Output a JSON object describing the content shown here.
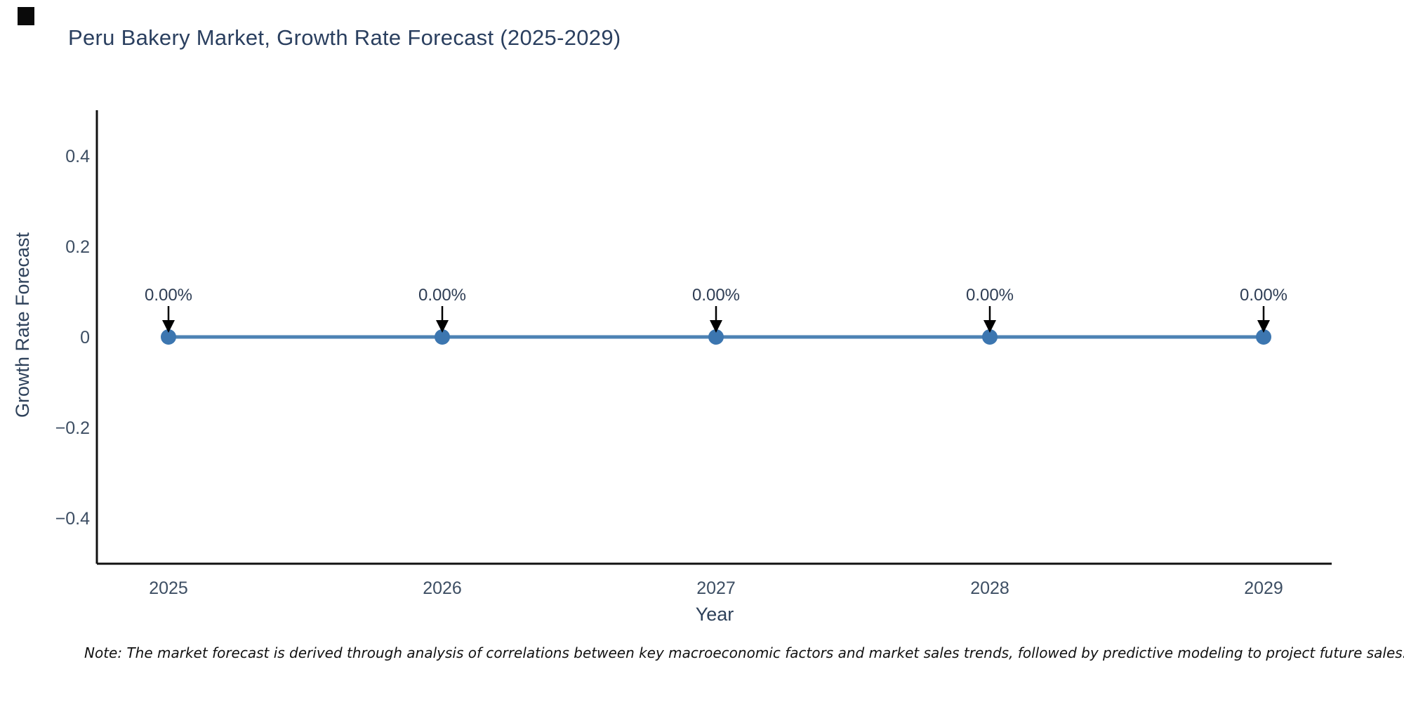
{
  "chart_data": {
    "type": "line",
    "title": "Peru Bakery Market, Growth Rate Forecast (2025-2029)",
    "xlabel": "Year",
    "ylabel": "Growth Rate Forecast",
    "categories": [
      "2025",
      "2026",
      "2027",
      "2028",
      "2029"
    ],
    "series": [
      {
        "name": "Growth Rate Forecast",
        "values": [
          0,
          0,
          0,
          0,
          0
        ],
        "point_labels": [
          "0.00%",
          "0.00%",
          "0.00%",
          "0.00%",
          "0.00%"
        ]
      }
    ],
    "yticks": [
      0.4,
      0.2,
      0,
      -0.2,
      -0.4
    ],
    "ytick_labels": [
      "0.4",
      "0.2",
      "0",
      "−0.2",
      "−0.4"
    ],
    "ylim": [
      -0.5,
      0.5
    ],
    "grid": false,
    "legend_position": "none",
    "colors": {
      "line": "#4d82b4",
      "marker": "#3c76b0",
      "axis_line": "#111111",
      "annotation_arrow": "#000000",
      "annotation_text": "#2e3d54",
      "tick_text": "#3d4e63",
      "title_text": "#2a3f5f"
    }
  },
  "footnote": {
    "text": "Note: The market forecast is derived through analysis of correlations between key macroeconomic factors and market sales trends, followed by predictive modeling to project future sales."
  }
}
